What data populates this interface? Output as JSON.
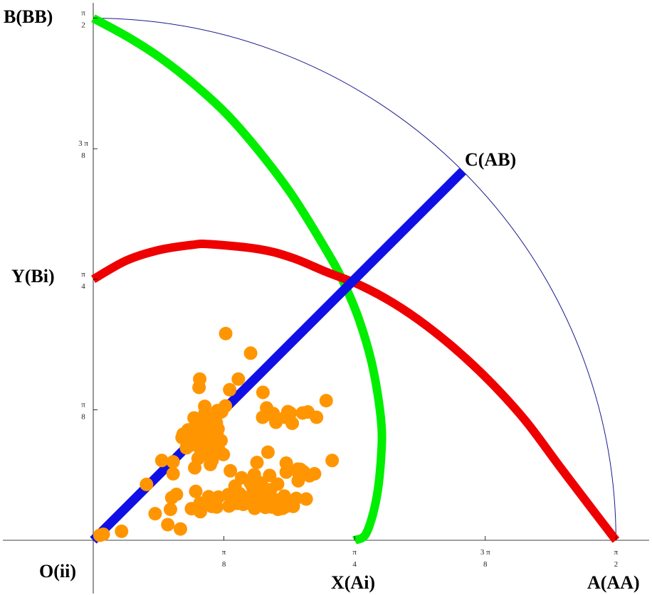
{
  "chart_data": {
    "type": "scatter",
    "title": "",
    "xlabel": "",
    "ylabel": "",
    "xlim": [
      0,
      1.6755
    ],
    "ylim": [
      0,
      1.6755
    ],
    "x_ticks": [
      {
        "value": 0.3927,
        "numerator": "π",
        "denominator": "8"
      },
      {
        "value": 0.7854,
        "numerator": "π",
        "denominator": "4"
      },
      {
        "value": 1.1781,
        "numerator": "3 π",
        "denominator": "8"
      },
      {
        "value": 1.5708,
        "numerator": "π",
        "denominator": "2"
      }
    ],
    "y_ticks": [
      {
        "value": 0.3927,
        "numerator": "π",
        "denominator": "8"
      },
      {
        "value": 0.7854,
        "numerator": "π",
        "denominator": "4"
      },
      {
        "value": 1.1781,
        "numerator": "3 π",
        "denominator": "8"
      },
      {
        "value": 1.5708,
        "numerator": "π",
        "denominator": "2"
      }
    ],
    "corner_labels": {
      "origin": "O(ii)",
      "x_mid": "X(Ai)",
      "x_end": "A(AA)",
      "y_mid": "Y(Bi)",
      "y_end": "B(BB)",
      "diagonal_end": "C(AB)"
    },
    "boundary_arc": {
      "radius": 1.5708,
      "color": "#1a1a8c"
    },
    "diagonal": {
      "from": [
        0,
        0
      ],
      "to": [
        1.1107,
        1.1107
      ],
      "color": "#1010e6"
    },
    "curves": [
      {
        "color": "#00ee00",
        "points": [
          [
            0,
            1.5708
          ],
          [
            0.1,
            1.5167
          ],
          [
            0.2,
            1.4529
          ],
          [
            0.3,
            1.3749
          ],
          [
            0.4,
            1.2833
          ],
          [
            0.5,
            1.1684
          ],
          [
            0.6,
            1.0349
          ],
          [
            0.7,
            0.8732
          ],
          [
            0.75,
            0.7808
          ],
          [
            0.8,
            0.6604
          ],
          [
            0.84,
            0.52
          ],
          [
            0.865,
            0.36
          ],
          [
            0.865,
            0.25
          ],
          [
            0.85,
            0.12
          ],
          [
            0.82,
            0.02
          ],
          [
            0.785,
            0
          ]
        ]
      },
      {
        "color": "#ee0000",
        "points": [
          [
            0,
            0.7854
          ],
          [
            0.1,
            0.8419
          ],
          [
            0.2,
            0.8738
          ],
          [
            0.3,
            0.8892
          ],
          [
            0.35,
            0.8909
          ],
          [
            0.5,
            0.8756
          ],
          [
            0.6,
            0.8492
          ],
          [
            0.7,
            0.8076
          ],
          [
            0.8,
            0.7684
          ],
          [
            0.9,
            0.7149
          ],
          [
            1.0,
            0.6468
          ],
          [
            1.1,
            0.5651
          ],
          [
            1.2,
            0.4698
          ],
          [
            1.3,
            0.3584
          ],
          [
            1.4,
            0.2244
          ],
          [
            1.5,
            0.0926
          ],
          [
            1.5708,
            0
          ]
        ]
      }
    ],
    "points_color": "#ff9500",
    "points": [
      [
        0.02,
        0.015
      ],
      [
        0.03,
        0.018
      ],
      [
        0.085,
        0.027
      ],
      [
        0.16,
        0.168
      ],
      [
        0.186,
        0.08
      ],
      [
        0.206,
        0.24
      ],
      [
        0.224,
        0.047
      ],
      [
        0.232,
        0.093
      ],
      [
        0.236,
        0.128
      ],
      [
        0.24,
        0.236
      ],
      [
        0.24,
        0.2
      ],
      [
        0.25,
        0.138
      ],
      [
        0.262,
        0.034
      ],
      [
        0.267,
        0.309
      ],
      [
        0.27,
        0.319
      ],
      [
        0.28,
        0.278
      ],
      [
        0.285,
        0.332
      ],
      [
        0.29,
        0.285
      ],
      [
        0.295,
        0.095
      ],
      [
        0.298,
        0.303
      ],
      [
        0.3,
        0.336
      ],
      [
        0.303,
        0.368
      ],
      [
        0.305,
        0.218
      ],
      [
        0.308,
        0.147
      ],
      [
        0.312,
        0.321
      ],
      [
        0.315,
        0.316
      ],
      [
        0.315,
        0.308
      ],
      [
        0.315,
        0.287
      ],
      [
        0.315,
        0.246
      ],
      [
        0.318,
        0.46
      ],
      [
        0.32,
        0.485
      ],
      [
        0.321,
        0.112
      ],
      [
        0.322,
        0.086
      ],
      [
        0.323,
        0.271
      ],
      [
        0.325,
        0.276
      ],
      [
        0.326,
        0.357
      ],
      [
        0.33,
        0.335
      ],
      [
        0.331,
        0.295
      ],
      [
        0.335,
        0.403
      ],
      [
        0.335,
        0.38
      ],
      [
        0.337,
        0.346
      ],
      [
        0.337,
        0.314
      ],
      [
        0.338,
        0.296
      ],
      [
        0.34,
        0.258
      ],
      [
        0.342,
        0.368
      ],
      [
        0.342,
        0.26
      ],
      [
        0.347,
        0.131
      ],
      [
        0.348,
        0.29
      ],
      [
        0.35,
        0.358
      ],
      [
        0.352,
        0.274
      ],
      [
        0.352,
        0.228
      ],
      [
        0.355,
        0.268
      ],
      [
        0.355,
        0.326
      ],
      [
        0.355,
        0.283
      ],
      [
        0.356,
        0.102
      ],
      [
        0.357,
        0.24
      ],
      [
        0.358,
        0.34
      ],
      [
        0.36,
        0.282
      ],
      [
        0.36,
        0.298
      ],
      [
        0.362,
        0.308
      ],
      [
        0.362,
        0.27
      ],
      [
        0.364,
        0.258
      ],
      [
        0.366,
        0.327
      ],
      [
        0.37,
        0.353
      ],
      [
        0.371,
        0.1
      ],
      [
        0.372,
        0.318
      ],
      [
        0.373,
        0.39
      ],
      [
        0.373,
        0.38
      ],
      [
        0.375,
        0.335
      ],
      [
        0.376,
        0.13
      ],
      [
        0.377,
        0.273
      ],
      [
        0.382,
        0.385
      ],
      [
        0.384,
        0.3
      ],
      [
        0.386,
        0.387
      ],
      [
        0.391,
        0.258
      ],
      [
        0.397,
        0.404
      ],
      [
        0.398,
        0.622
      ],
      [
        0.405,
        0.137
      ],
      [
        0.408,
        0.103
      ],
      [
        0.41,
        0.453
      ],
      [
        0.412,
        0.209
      ],
      [
        0.415,
        0.114
      ],
      [
        0.42,
        0.11
      ],
      [
        0.426,
        0.163
      ],
      [
        0.432,
        0.12
      ],
      [
        0.434,
        0.111
      ],
      [
        0.436,
        0.485
      ],
      [
        0.44,
        0.14
      ],
      [
        0.446,
        0.188
      ],
      [
        0.451,
        0.108
      ],
      [
        0.457,
        0.129
      ],
      [
        0.465,
        0.116
      ],
      [
        0.472,
        0.173
      ],
      [
        0.473,
        0.563
      ],
      [
        0.476,
        0.12
      ],
      [
        0.478,
        0.162
      ],
      [
        0.48,
        0.105
      ],
      [
        0.481,
        0.109
      ],
      [
        0.484,
        0.197
      ],
      [
        0.485,
        0.135
      ],
      [
        0.485,
        0.096
      ],
      [
        0.488,
        0.152
      ],
      [
        0.492,
        0.234
      ],
      [
        0.494,
        0.118
      ],
      [
        0.498,
        0.114
      ],
      [
        0.503,
        0.125
      ],
      [
        0.505,
        0.172
      ],
      [
        0.508,
        0.133
      ],
      [
        0.509,
        0.37
      ],
      [
        0.51,
        0.445
      ],
      [
        0.513,
        0.12
      ],
      [
        0.517,
        0.099
      ],
      [
        0.518,
        0.108
      ],
      [
        0.52,
        0.13
      ],
      [
        0.521,
        0.398
      ],
      [
        0.525,
        0.265
      ],
      [
        0.53,
        0.195
      ],
      [
        0.532,
        0.38
      ],
      [
        0.533,
        0.152
      ],
      [
        0.533,
        0.378
      ],
      [
        0.536,
        0.1
      ],
      [
        0.538,
        0.118
      ],
      [
        0.541,
        0.381
      ],
      [
        0.547,
        0.105
      ],
      [
        0.549,
        0.355
      ],
      [
        0.55,
        0.121
      ],
      [
        0.552,
        0.106
      ],
      [
        0.554,
        0.169
      ],
      [
        0.555,
        0.093
      ],
      [
        0.56,
        0.1
      ],
      [
        0.563,
        0.112
      ],
      [
        0.566,
        0.097
      ],
      [
        0.569,
        0.096
      ],
      [
        0.574,
        0.133
      ],
      [
        0.577,
        0.37
      ],
      [
        0.578,
        0.101
      ],
      [
        0.58,
        0.232
      ],
      [
        0.58,
        0.205
      ],
      [
        0.585,
        0.387
      ],
      [
        0.59,
        0.114
      ],
      [
        0.592,
        0.383
      ],
      [
        0.598,
        0.352
      ],
      [
        0.601,
        0.102
      ],
      [
        0.61,
        0.126
      ],
      [
        0.615,
        0.214
      ],
      [
        0.616,
        0.179
      ],
      [
        0.617,
        0.203
      ],
      [
        0.62,
        0.196
      ],
      [
        0.623,
        0.213
      ],
      [
        0.629,
        0.383
      ],
      [
        0.632,
        0.206
      ],
      [
        0.64,
        0.124
      ],
      [
        0.645,
        0.386
      ],
      [
        0.65,
        0.194
      ],
      [
        0.665,
        0.2
      ],
      [
        0.671,
        0.37
      ],
      [
        0.7,
        0.42
      ],
      [
        0.718,
        0.24
      ]
    ]
  }
}
